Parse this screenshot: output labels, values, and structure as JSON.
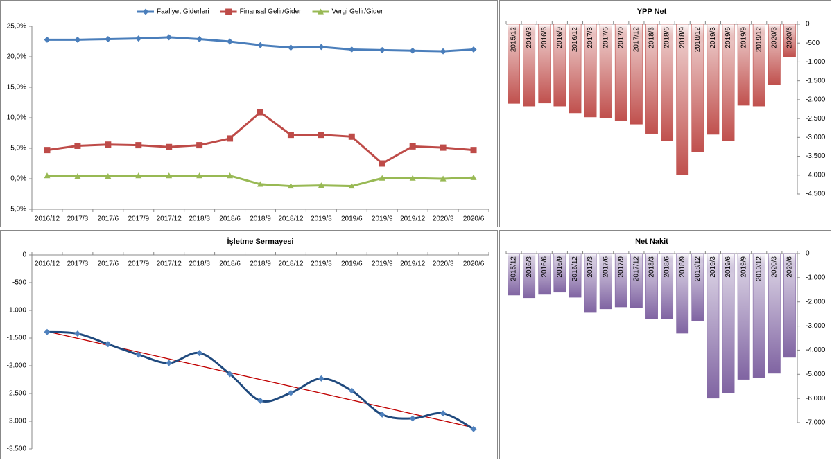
{
  "chart_data": [
    {
      "type": "line",
      "legend": "top",
      "grid": false,
      "categories": [
        "2016/12",
        "2017/3",
        "2017/6",
        "2017/9",
        "2017/12",
        "2018/3",
        "2018/6",
        "2018/9",
        "2018/12",
        "2019/3",
        "2019/6",
        "2019/9",
        "2019/12",
        "2020/3",
        "2020/6"
      ],
      "series": [
        {
          "name": "Faaliyet Giderleri",
          "color": "#4a7ebb",
          "marker": "diamond",
          "values": [
            22.8,
            22.8,
            22.9,
            23.0,
            23.2,
            22.9,
            22.5,
            21.9,
            21.5,
            21.6,
            21.2,
            21.1,
            21.0,
            20.9,
            21.2
          ]
        },
        {
          "name": "Finansal Gelir/Gider",
          "color": "#be4b48",
          "marker": "square",
          "values": [
            4.7,
            5.4,
            5.6,
            5.5,
            5.2,
            5.5,
            6.6,
            10.9,
            7.2,
            7.2,
            6.9,
            2.5,
            5.3,
            5.1,
            4.7
          ]
        },
        {
          "name": "Vergi Gelir/Gider",
          "color": "#98b954",
          "marker": "triangle",
          "values": [
            0.5,
            0.4,
            0.4,
            0.5,
            0.5,
            0.5,
            0.5,
            -0.9,
            -1.2,
            -1.1,
            -1.2,
            0.1,
            0.1,
            0.0,
            0.2
          ]
        }
      ],
      "ylim": [
        -5,
        25
      ],
      "yticks": [
        {
          "value": -5,
          "label": "-5,0%"
        },
        {
          "value": 0,
          "label": "0,0%"
        },
        {
          "value": 5,
          "label": "5,0%"
        },
        {
          "value": 10,
          "label": "10,0%"
        },
        {
          "value": 15,
          "label": "15,0%"
        },
        {
          "value": 20,
          "label": "20,0%"
        },
        {
          "value": 25,
          "label": "25,0%"
        }
      ]
    },
    {
      "type": "bar",
      "title": "YPP Net",
      "color": "#c0504d",
      "grid": false,
      "categories": [
        "2015/12",
        "2016/3",
        "2016/6",
        "2016/9",
        "2016/12",
        "2017/3",
        "2017/6",
        "2017/9",
        "2017/12",
        "2018/3",
        "2018/6",
        "2018/9",
        "2018/12",
        "2019/3",
        "2019/6",
        "2019/9",
        "2019/12",
        "2020/3",
        "2020/6"
      ],
      "values": [
        -2100,
        -2170,
        -2090,
        -2170,
        -2350,
        -2460,
        -2480,
        -2550,
        -2650,
        -2900,
        -3090,
        -3990,
        -3380,
        -2920,
        -3090,
        -2150,
        -2170,
        -1600,
        -860
      ],
      "ylim": [
        -4500,
        0
      ],
      "yticks": [
        {
          "value": -4500,
          "label": "-4.500"
        },
        {
          "value": -4000,
          "label": "-4.000"
        },
        {
          "value": -3500,
          "label": "-3.500"
        },
        {
          "value": -3000,
          "label": "-3.000"
        },
        {
          "value": -2500,
          "label": "-2.500"
        },
        {
          "value": -2000,
          "label": "-2.000"
        },
        {
          "value": -1500,
          "label": "-1.500"
        },
        {
          "value": -1000,
          "label": "-1.000"
        },
        -500,
        0
      ]
    },
    {
      "type": "line",
      "title": "İşletme Sermayesi",
      "grid": false,
      "smooth": true,
      "trendline": true,
      "trendline_color": "#c00000",
      "categories": [
        "2016/12",
        "2017/3",
        "2017/6",
        "2017/9",
        "2017/12",
        "2018/3",
        "2018/6",
        "2018/9",
        "2018/12",
        "2019/3",
        "2019/6",
        "2019/9",
        "2019/12",
        "2020/3",
        "2020/6"
      ],
      "series": [
        {
          "color": "#1f497d",
          "marker": "diamond",
          "marker_color": "#4f81bd",
          "values": [
            -1390,
            -1420,
            -1610,
            -1800,
            -1950,
            -1770,
            -2150,
            -2630,
            -2490,
            -2230,
            -2450,
            -2880,
            -2950,
            -2860,
            -3140
          ]
        }
      ],
      "ylim": [
        -3500,
        0
      ],
      "yticks": [
        {
          "value": -3500,
          "label": "-3.500"
        },
        {
          "value": -3000,
          "label": "-3.000"
        },
        {
          "value": -2500,
          "label": "-2.500"
        },
        {
          "value": -2000,
          "label": "-2.000"
        },
        {
          "value": -1500,
          "label": "-1.500"
        },
        {
          "value": -1000,
          "label": "-1.000"
        },
        -500,
        0
      ]
    },
    {
      "type": "bar",
      "title": "Net Nakit",
      "color": "#8064a2",
      "grid": false,
      "categories": [
        "2015/12",
        "2016/3",
        "2016/6",
        "2016/9",
        "2016/12",
        "2017/3",
        "2017/6",
        "2017/9",
        "2017/12",
        "2018/3",
        "2018/6",
        "2018/9",
        "2018/12",
        "2019/3",
        "2019/6",
        "2019/9",
        "2019/12",
        "2020/3",
        "2020/6"
      ],
      "values": [
        -1720,
        -1830,
        -1690,
        -1600,
        -1810,
        -2440,
        -2290,
        -2210,
        -2240,
        -2700,
        -2700,
        -3300,
        -2780,
        -5990,
        -5760,
        -5210,
        -5130,
        -4960,
        -4300
      ],
      "ylim": [
        -7000,
        0
      ],
      "yticks": [
        {
          "value": -7000,
          "label": "-7.000"
        },
        {
          "value": -6000,
          "label": "-6.000"
        },
        {
          "value": -5000,
          "label": "-5.000"
        },
        {
          "value": -4000,
          "label": "-4.000"
        },
        {
          "value": -3000,
          "label": "-3.000"
        },
        {
          "value": -2000,
          "label": "-2.000"
        },
        {
          "value": -1000,
          "label": "-1.000"
        },
        0
      ]
    }
  ]
}
